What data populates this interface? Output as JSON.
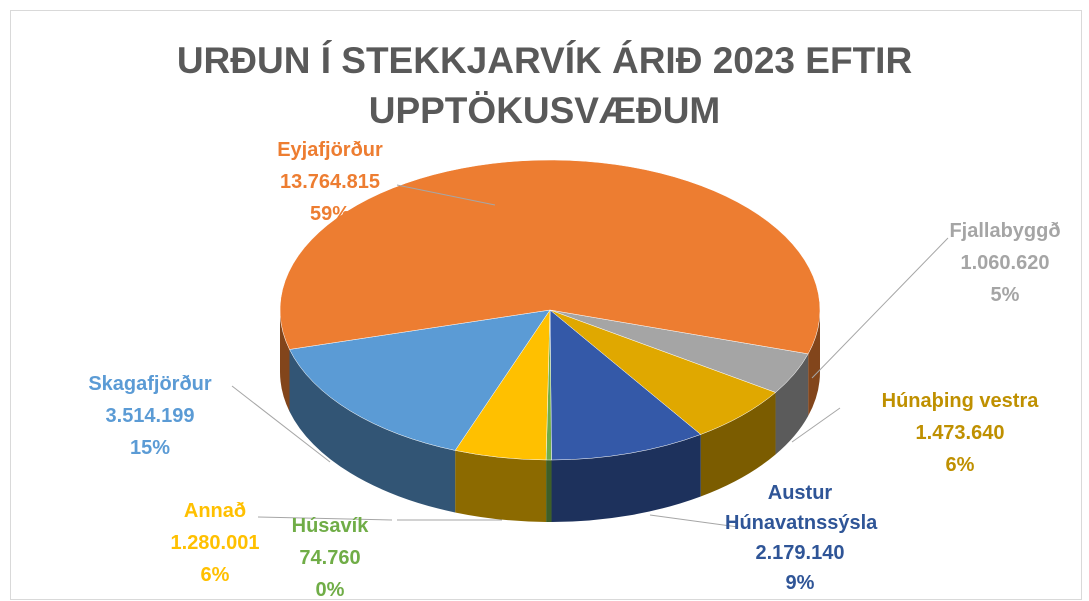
{
  "chart_data": {
    "type": "pie",
    "title": "URÐUN Í STEKKJARVÍK ÁRIÐ 2023 EFTIR UPPTÖKUSVÆÐUM",
    "categories": [
      "Fjallabyggð",
      "Húnaþing vestra",
      "Austur Húnavatnssýsla",
      "Húsavík",
      "Annað",
      "Skagafjörður",
      "Eyjafjörður"
    ],
    "values": [
      1060620,
      1473640,
      2179140,
      74760,
      1280001,
      3514199,
      13764815
    ],
    "value_labels": [
      "1.060.620",
      "1.473.640",
      "2.179.140",
      "74.760",
      "1.280.001",
      "3.514.199",
      "13.764.815"
    ],
    "percent_labels": [
      "5%",
      "6%",
      "9%",
      "0%",
      "6%",
      "15%",
      "59%"
    ],
    "colors": [
      "#a5a5a5",
      "#e0a800",
      "#3459a8",
      "#70ad47",
      "#ffc000",
      "#5b9bd5",
      "#ed7d31"
    ],
    "label_colors": [
      "#a5a5a5",
      "#bf9000",
      "#2f5597",
      "#70ad47",
      "#ffc000",
      "#5b9bd5",
      "#ed7d31"
    ]
  }
}
